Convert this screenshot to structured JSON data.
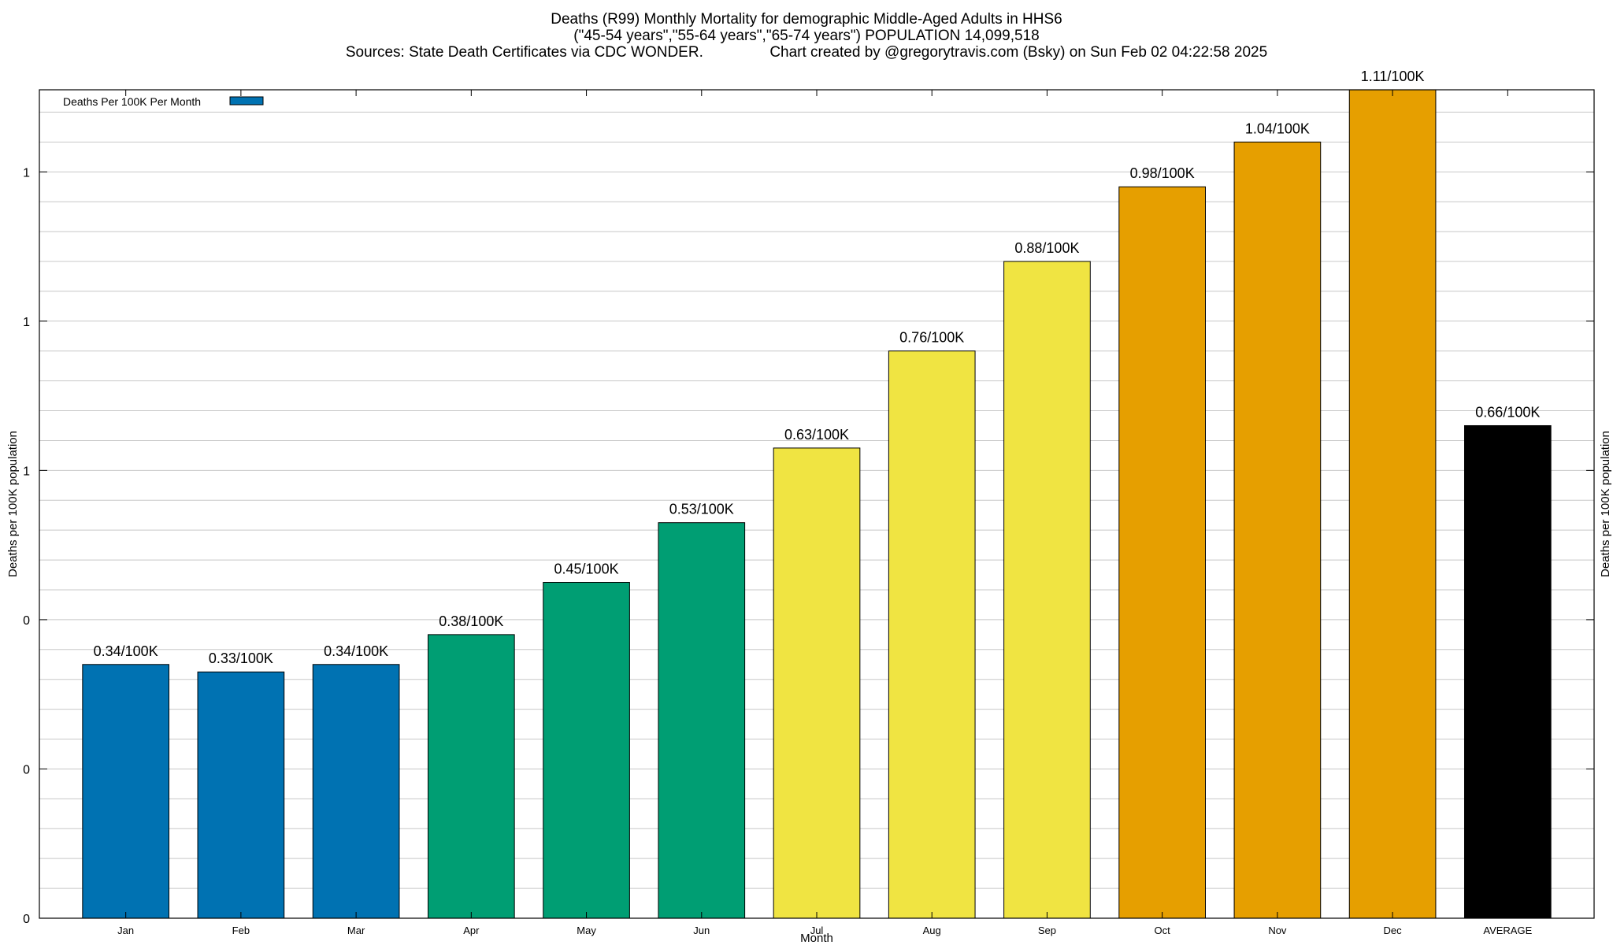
{
  "chart_data": {
    "type": "bar",
    "title_lines": [
      "Deaths (R99) Monthly Mortality for demographic Middle-Aged Adults in HHS6",
      "(\"45-54 years\",\"55-64 years\",\"65-74 years\") POPULATION 14,099,518",
      "Sources: State Death Certificates via CDC WONDER.                Chart created by @gregorytravis.com (Bsky) on Sun Feb 02 04:22:58 2025"
    ],
    "xlabel": "Month",
    "ylabel": "Deaths per 100K population",
    "y2label": "Deaths per 100K population",
    "ylim": [
      0,
      1.11
    ],
    "y_ticks": [
      0,
      0.2,
      0.4,
      0.6,
      0.8,
      1.0
    ],
    "y_tick_labels": [
      "0",
      "0",
      "0",
      "1",
      "1",
      "1"
    ],
    "y_minor_step": 0.04,
    "grid": true,
    "legend": {
      "label": "Deaths Per 100K Per Month",
      "color": "#0072b2",
      "position": "top-left"
    },
    "categories": [
      "Jan",
      "Feb",
      "Mar",
      "Apr",
      "May",
      "Jun",
      "Jul",
      "Aug",
      "Sep",
      "Oct",
      "Nov",
      "Dec",
      "AVERAGE"
    ],
    "values": [
      0.34,
      0.33,
      0.34,
      0.38,
      0.45,
      0.53,
      0.63,
      0.76,
      0.88,
      0.98,
      1.04,
      1.11,
      0.66
    ],
    "data_labels": [
      "0.34/100K",
      "0.33/100K",
      "0.34/100K",
      "0.38/100K",
      "0.45/100K",
      "0.53/100K",
      "0.63/100K",
      "0.76/100K",
      "0.88/100K",
      "0.98/100K",
      "1.04/100K",
      "1.11/100K",
      "0.66/100K"
    ],
    "bar_colors": [
      "#0072b2",
      "#0072b2",
      "#0072b2",
      "#009e73",
      "#009e73",
      "#009e73",
      "#f0e442",
      "#f0e442",
      "#f0e442",
      "#e69f00",
      "#e69f00",
      "#e69f00",
      "#000000"
    ]
  }
}
